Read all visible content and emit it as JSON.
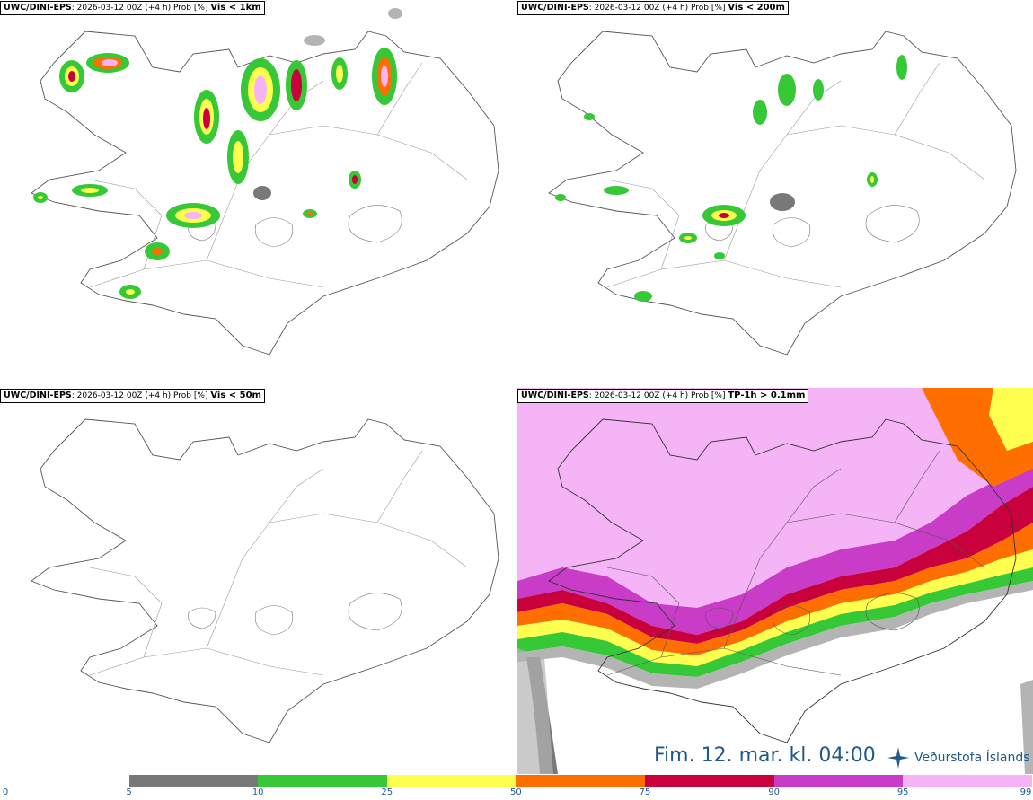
{
  "panels": [
    {
      "model": "UWC/DINI-EPS",
      "run": ": 2026-03-12 00Z (+4 h) Prob [%]",
      "variable": "Vis < 1km"
    },
    {
      "model": "UWC/DINI-EPS",
      "run": ": 2026-03-12 00Z (+4 h) Prob [%]",
      "variable": "Vis < 200m"
    },
    {
      "model": "UWC/DINI-EPS",
      "run": ": 2026-03-12 00Z (+4 h) Prob [%]",
      "variable": "Vis < 50m"
    },
    {
      "model": "UWC/DINI-EPS",
      "run": ": 2026-03-12 00Z (+4 h) Prob [%]",
      "variable": "TP-1h > 0.1mm"
    }
  ],
  "valid_time": "Fim. 12. mar. kl. 04:00",
  "logo": {
    "text": "Veðurstofa Íslands",
    "icon": "vedurstofa-star-icon"
  },
  "colorbar": {
    "ticks": [
      "0",
      "5",
      "10",
      "25",
      "50",
      "75",
      "90",
      "95",
      "99"
    ],
    "colors": [
      "#ffffff",
      "#b4b4b4",
      "#787878",
      "#37c837",
      "#ffff50",
      "#ff6e00",
      "#c8003c",
      "#c83cc8",
      "#f5b4f5"
    ]
  }
}
